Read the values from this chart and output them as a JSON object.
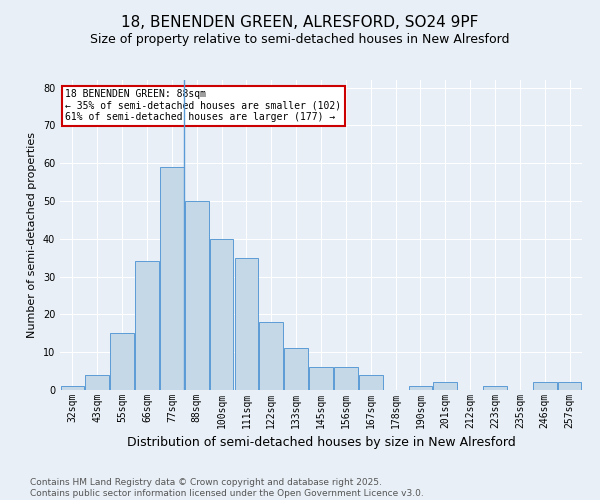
{
  "title": "18, BENENDEN GREEN, ALRESFORD, SO24 9PF",
  "subtitle": "Size of property relative to semi-detached houses in New Alresford",
  "xlabel": "Distribution of semi-detached houses by size in New Alresford",
  "ylabel": "Number of semi-detached properties",
  "footer": "Contains HM Land Registry data © Crown copyright and database right 2025.\nContains public sector information licensed under the Open Government Licence v3.0.",
  "categories": [
    "32sqm",
    "43sqm",
    "55sqm",
    "66sqm",
    "77sqm",
    "88sqm",
    "100sqm",
    "111sqm",
    "122sqm",
    "133sqm",
    "145sqm",
    "156sqm",
    "167sqm",
    "178sqm",
    "190sqm",
    "201sqm",
    "212sqm",
    "223sqm",
    "235sqm",
    "246sqm",
    "257sqm"
  ],
  "values": [
    1,
    4,
    15,
    34,
    59,
    50,
    40,
    35,
    18,
    11,
    6,
    6,
    4,
    0,
    1,
    2,
    0,
    1,
    0,
    2,
    2
  ],
  "bar_color": "#c5d8e8",
  "bar_edge_color": "#5b9bd5",
  "vline_index": 4.5,
  "annotation_title": "18 BENENDEN GREEN: 88sqm",
  "annotation_line2": "← 35% of semi-detached houses are smaller (102)",
  "annotation_line3": "61% of semi-detached houses are larger (177) →",
  "annotation_box_color": "#ffffff",
  "annotation_box_edge": "#cc0000",
  "ylim": [
    0,
    82
  ],
  "yticks": [
    0,
    10,
    20,
    30,
    40,
    50,
    60,
    70,
    80
  ],
  "background_color": "#e8eff6",
  "grid_color": "#ffffff",
  "title_fontsize": 11,
  "subtitle_fontsize": 9,
  "xlabel_fontsize": 9,
  "ylabel_fontsize": 8,
  "tick_fontsize": 7,
  "footer_fontsize": 6.5
}
